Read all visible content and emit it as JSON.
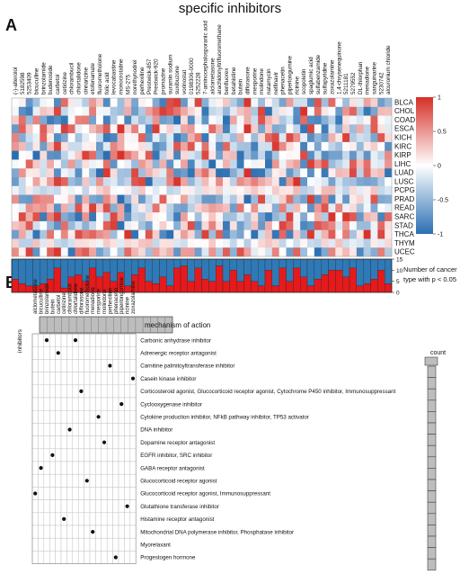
{
  "figure": {
    "title": "specific inhibitors",
    "panel_a_letter": "A",
    "panel_b_letter": "B"
  },
  "panel_a": {
    "drugs": [
      "(-)-alterolol",
      "5182598",
      "5253409",
      "bicuculline",
      "brinzolamide",
      "budenoside",
      "carbetol",
      "cetirizine",
      "chlorambucil",
      "chlortalidone",
      "cinnarizine",
      "etofenamate",
      "fluorometholone",
      "folic acid",
      "levocabastine",
      "monocrotaline",
      "MS-275",
      "norethynodrel",
      "perhexiline",
      "Prestwick-857",
      "Prestwick-920",
      "promazine",
      "suramin sodium",
      "suxibuzone",
      "vorinostat",
      "0198306-0000",
      "5252228",
      "7-aminocephalosporanic acid",
      "alclometasone",
      "arachidonyltrifluoromethane",
      "benfluorex",
      "betahistine",
      "butein",
      "diflorasone",
      "mesporine",
      "molindone",
      "natamycin",
      "nelfinavir",
      "phenacetin",
      "piperlongumine",
      "ricinine",
      "scopoletin",
      "spaglumic acid",
      "sulfabenzamide",
      "sulfapyridine",
      "zoxazolamine",
      "1,4-chrysenequinone",
      "5211181",
      "5279552",
      "DL-thiorphan",
      "menadione",
      "sanguinarine",
      "5230742",
      "alcuronium chloride"
    ],
    "cancers": [
      "BLCA",
      "CHOL",
      "COAD",
      "ESCA",
      "KICH",
      "KIRC",
      "KIRP",
      "LIHC",
      "LUAD",
      "LUSC",
      "PCPG",
      "PRAD",
      "READ",
      "SARC",
      "STAD",
      "THCA",
      "THYM",
      "UCEC"
    ],
    "colorbar_ticks": [
      "1",
      "0.5",
      "0",
      "-0.5",
      "-1"
    ],
    "bar_axis_ticks": [
      "15",
      "10",
      "5",
      "0"
    ],
    "bar_label_line1": "Number of cancer",
    "bar_label_line2": "type with p < 0.05",
    "bar_colors": {
      "top": "#2f79b6",
      "bottom": "#e41a1c"
    }
  },
  "panel_b": {
    "inhibitors_label": "inhibitors",
    "mechanism_header": "mechanism of action",
    "count_label": "count",
    "drugs": [
      "alclometasone",
      "bicuculline",
      "brinzolamide",
      "butein",
      "carbetol",
      "cetirizine",
      "chlorambucil",
      "chlortalidone",
      "diflorasone",
      "fluorometholone",
      "menadione",
      "mesporine",
      "molindone",
      "perhexiline",
      "phenacetin",
      "piperlongumine",
      "ricinine",
      "zoxazolamine"
    ],
    "mechanisms": [
      "Carbonic anhydrase inhibitor",
      "Adrenergic receptor antagonist",
      "Carnitine palmitoyltransferase inhibitor",
      "Casein kinase inhibitor",
      "Corticosteroid agonist, Glucocorticoid receptor agonist, Cytochrome P450 inhibitor, Immunosuppressant",
      "Cyclooxygenase inhibitor",
      "Cytokine production inhibitor, NFkB pathway inhibitor, TP53 activator",
      "DNA inhibitor",
      "Dopamine receptor antagonist",
      "EGFR inhibitor, SRC inhibitor",
      "GABA receptor antagonist",
      "Glucocorticoid receptor agonist",
      "Glucocorticoid receptor agonist, Immunosuppressant",
      "Glutathione transferase inhibitor",
      "Histamine receptor antagonist",
      "Mitochondrial DNA polymerase inhibitor, Phosphatase inhibitor",
      "Myorelaxant",
      "Progestogen hormone"
    ],
    "dots": [
      [
        0,
        7
      ],
      [
        0,
        2
      ],
      [
        1,
        4
      ],
      [
        2,
        13
      ],
      [
        3,
        17
      ],
      [
        4,
        8
      ],
      [
        5,
        15
      ],
      [
        6,
        11
      ],
      [
        7,
        6
      ],
      [
        8,
        12
      ],
      [
        9,
        3
      ],
      [
        10,
        1
      ],
      [
        11,
        9
      ],
      [
        12,
        0
      ],
      [
        13,
        16
      ],
      [
        14,
        5
      ],
      [
        15,
        10
      ],
      [
        16,
        18
      ],
      [
        17,
        14
      ]
    ]
  }
}
